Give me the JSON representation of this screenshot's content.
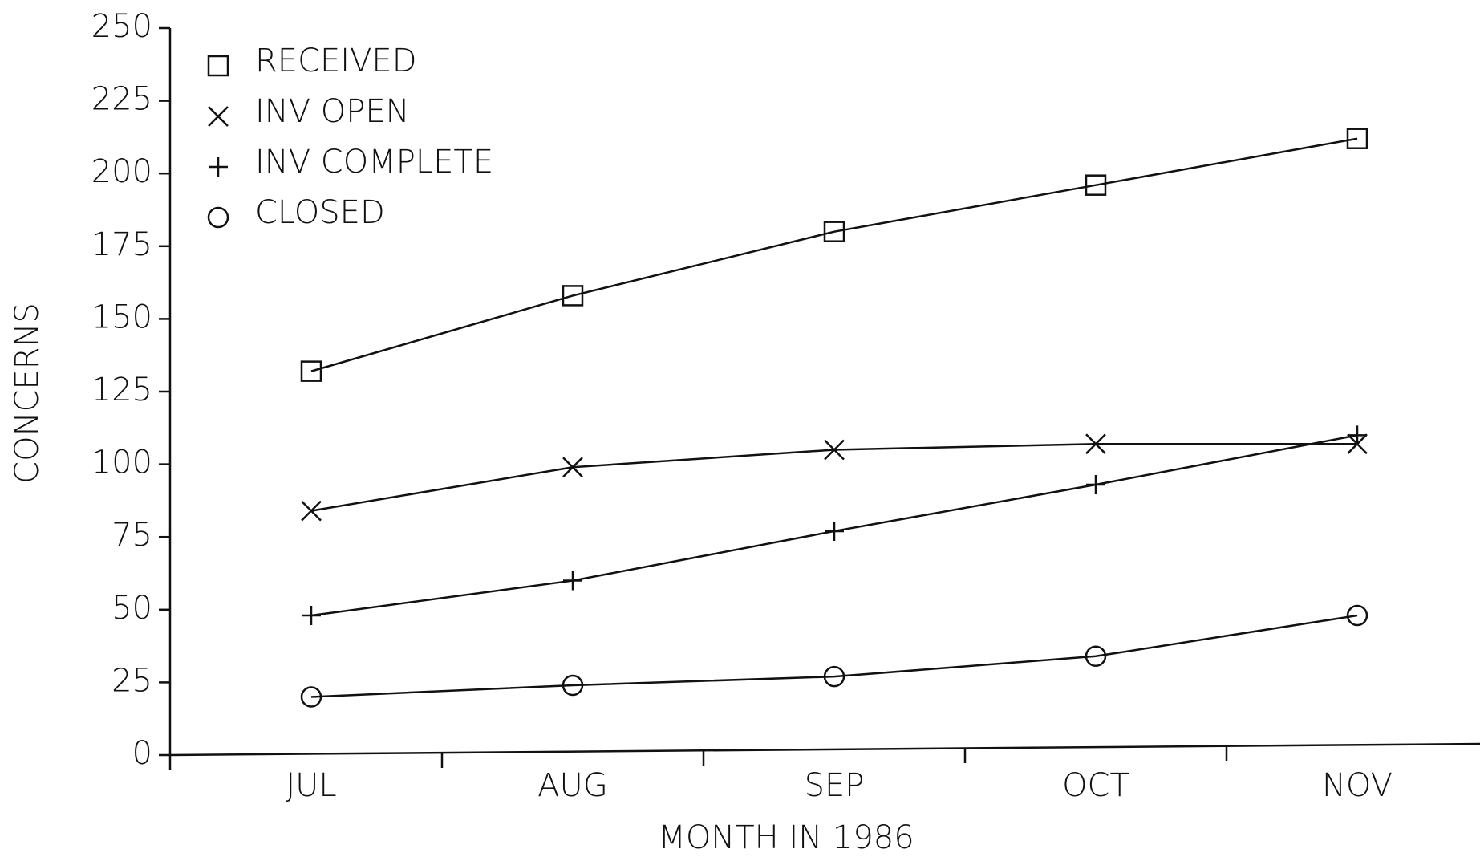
{
  "chart_data": {
    "type": "line",
    "x_label": "MONTH IN 1986",
    "y_label": "CONCERNS",
    "categories": [
      "JUL",
      "AUG",
      "SEP",
      "OCT",
      "NOV"
    ],
    "series": [
      {
        "name": "RECEIVED",
        "marker": "square",
        "color": "#111111",
        "values": [
          132,
          158,
          180,
          196,
          212
        ]
      },
      {
        "name": "INV OPEN",
        "marker": "x",
        "color": "#111111",
        "values": [
          84,
          99,
          105,
          107,
          107
        ]
      },
      {
        "name": "INV COMPLETE",
        "marker": "plus",
        "color": "#111111",
        "values": [
          48,
          60,
          77,
          93,
          110
        ]
      },
      {
        "name": "CLOSED",
        "marker": "circle",
        "color": "#111111",
        "values": [
          20,
          24,
          27,
          34,
          48
        ]
      }
    ],
    "ylim": [
      0,
      250
    ],
    "yticks": [
      0,
      25,
      50,
      75,
      100,
      125,
      150,
      175,
      200,
      225,
      250
    ],
    "legend": "upper left"
  }
}
